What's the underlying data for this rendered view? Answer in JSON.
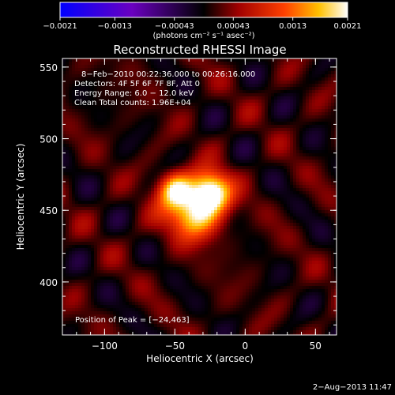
{
  "chart_data": {
    "type": "heatmap",
    "title": "Reconstructed RHESSI Image",
    "xlabel": "Heliocentric X (arcsec)",
    "ylabel": "Heliocentric Y (arcsec)",
    "xlim": [
      -130,
      65
    ],
    "ylim": [
      363,
      556
    ],
    "x_ticks": [
      -100,
      -50,
      0,
      50
    ],
    "y_ticks": [
      400,
      450,
      500,
      550
    ],
    "x_tick_labels": [
      "−100",
      "−50",
      "0",
      "50"
    ],
    "y_tick_labels": [
      "400",
      "450",
      "500",
      "550"
    ],
    "colorbar": {
      "range": [
        -0.0021,
        0.0021
      ],
      "ticks": [
        -0.0021,
        -0.0013,
        -0.00043,
        0.00043,
        0.0013,
        0.0021
      ],
      "tick_labels": [
        "−0.0021",
        "−0.0013",
        "−0.00043",
        "0.00043",
        "0.0013",
        "0.0021"
      ],
      "units_label": "(photons cm⁻² s⁻¹ asec⁻²)"
    },
    "annotations": [
      "8−Feb−2010 00:22:36.000 to 00:26:16.000",
      "Detectors: 4F 5F 6F 7F 8F, Att 0",
      "Energy Range: 6.0 − 12.0 keV",
      "Clean     Total counts: 1.96E+04"
    ],
    "peak_label": "Position of Peak = [−24,463]",
    "peak": {
      "x": -24,
      "y": 463
    },
    "sources": [
      {
        "x": -24,
        "y": 463,
        "amp": 0.00205,
        "sigma": 10
      },
      {
        "x": -50,
        "y": 465,
        "amp": 0.00135,
        "sigma": 8
      },
      {
        "x": -33,
        "y": 446,
        "amp": 0.0011,
        "sigma": 12
      },
      {
        "x": -44,
        "y": 452,
        "amp": 0.0009,
        "sigma": 14
      }
    ]
  },
  "footer": {
    "timestamp": "2−Aug−2013 11:47"
  }
}
